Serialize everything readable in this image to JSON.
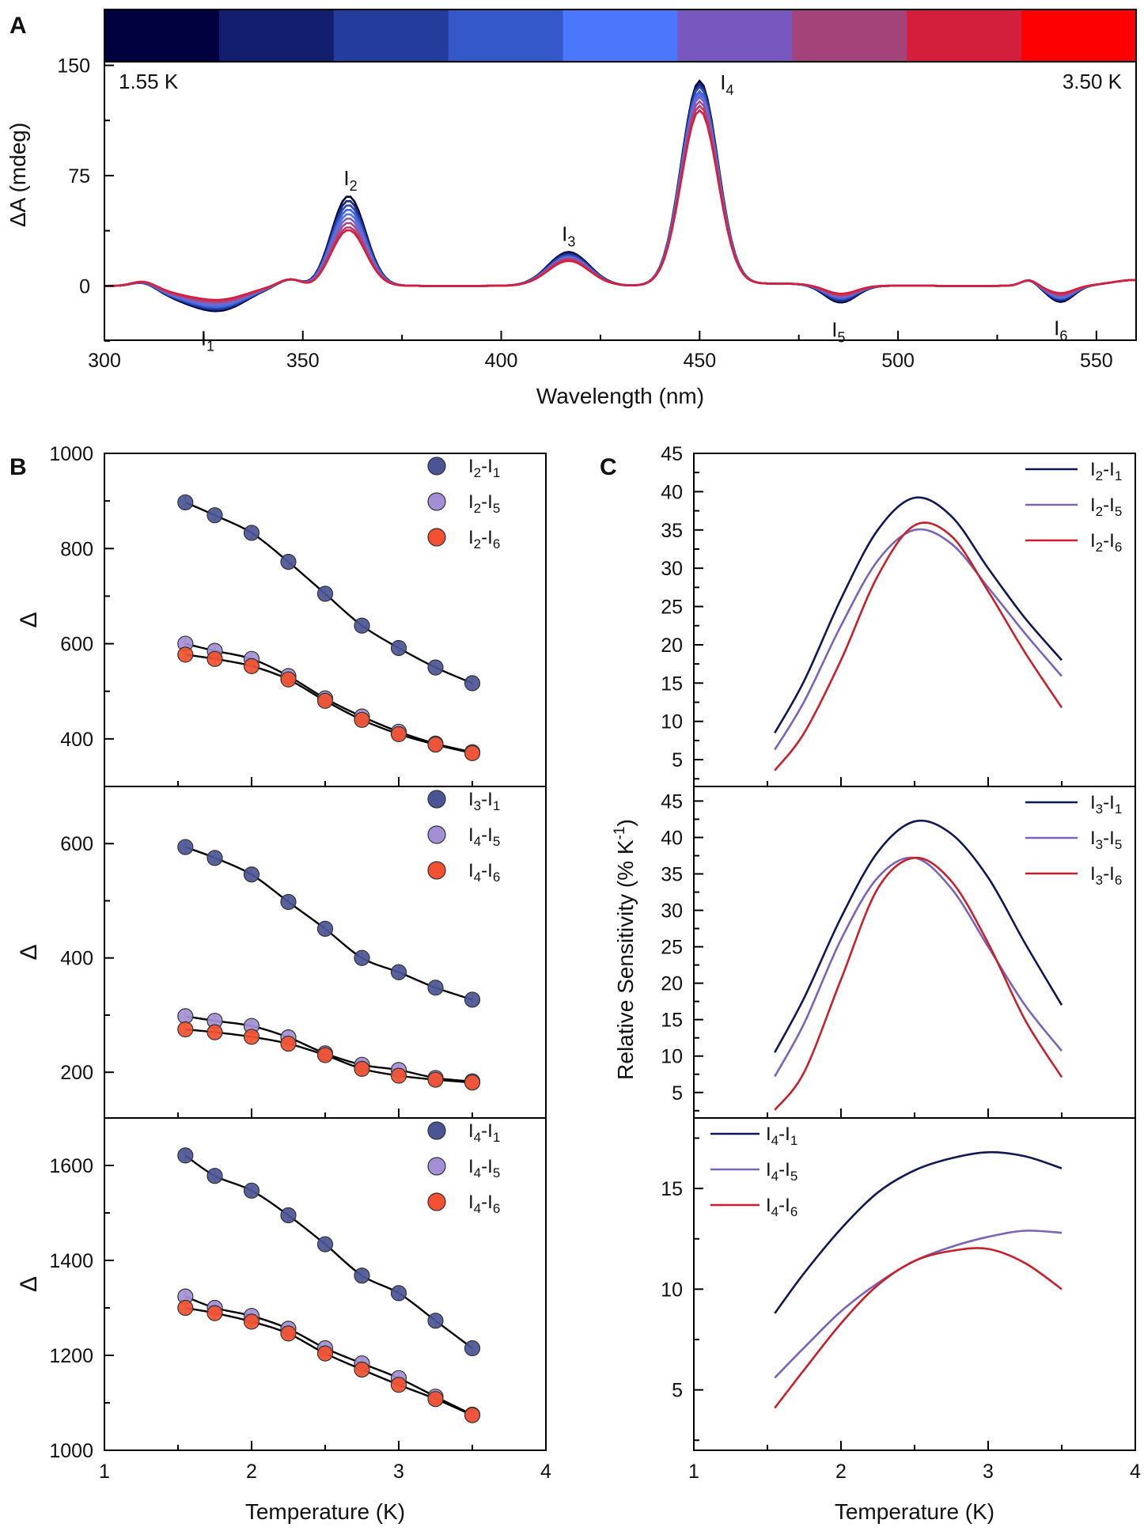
{
  "panels": {
    "a": "A",
    "b": "B",
    "c": "C"
  },
  "chart_data": [
    {
      "id": "A",
      "type": "line",
      "xlabel": "Wavelength (nm)",
      "ylabel": "ΔA (mdeg)",
      "xlim": [
        300,
        560
      ],
      "ylim": [
        -37,
        188
      ],
      "xticks": [
        300,
        350,
        400,
        450,
        500,
        550
      ],
      "yticks": [
        0,
        75,
        150
      ],
      "colorbar": {
        "colors": [
          "#02013f",
          "#131d6e",
          "#243c9b",
          "#3558c8",
          "#4a77fb",
          "#7758bf",
          "#a4437a",
          "#d31f3c",
          "#fd0101"
        ],
        "label_low": "1.55 K",
        "label_high": "3.50 K"
      },
      "peak_labels": [
        {
          "id": "I1",
          "base": "I",
          "sub": "1",
          "wavelength": 326,
          "value": -18
        },
        {
          "id": "I2",
          "base": "I",
          "sub": "2",
          "wavelength": 362,
          "value": 61
        },
        {
          "id": "I3",
          "base": "I",
          "sub": "3",
          "wavelength": 417,
          "value": 23
        },
        {
          "id": "I4",
          "base": "I",
          "sub": "4",
          "wavelength": 450,
          "value": 139
        },
        {
          "id": "I5",
          "base": "I",
          "sub": "5",
          "wavelength": 485,
          "value": -12
        },
        {
          "id": "I6",
          "base": "I",
          "sub": "6",
          "wavelength": 541,
          "value": -11
        }
      ],
      "series_colors": [
        "#02013f",
        "#1a2b86",
        "#2c49b0",
        "#3d66da",
        "#5a6fe0",
        "#7b64c4",
        "#9a4f98",
        "#bb3a6b",
        "#d3203f"
      ],
      "series_temperatures_K": [
        1.55,
        1.75,
        2.0,
        2.25,
        2.5,
        2.75,
        3.0,
        3.25,
        3.5
      ],
      "peak_heights": {
        "I1": [
          -18,
          -17,
          -16,
          -15,
          -14,
          -13,
          -12,
          -11,
          -10
        ],
        "I2": [
          61,
          58,
          55,
          52,
          49,
          46,
          43,
          40,
          38
        ],
        "I3": [
          23,
          22,
          21,
          20,
          19.5,
          19,
          18.5,
          18,
          17
        ],
        "I4": [
          139,
          137,
          135,
          132,
          130,
          128,
          125,
          122,
          119
        ],
        "I5": [
          -12,
          -11,
          -10,
          -9,
          -8.5,
          -8,
          -7.5,
          -7,
          -6
        ],
        "I6": [
          -11,
          -10,
          -9,
          -8.5,
          -8,
          -7,
          -6.5,
          -6,
          -5
        ]
      }
    },
    {
      "id": "B",
      "type": "scatter",
      "xlabel": "Temperature (K)",
      "ylabel": "Δ",
      "xlim": [
        1,
        4
      ],
      "xticks": [
        1,
        2,
        3,
        4
      ],
      "x": [
        1.55,
        1.75,
        2.0,
        2.25,
        2.5,
        2.75,
        3.0,
        3.25,
        3.5
      ],
      "subplots": [
        {
          "ylim": [
            300,
            1000
          ],
          "yticks": [
            400,
            600,
            800,
            1000
          ],
          "series": [
            {
              "base": "I",
              "sub1": "2",
              "sub2": "1",
              "color": "#4a5596",
              "values": [
                897,
                870,
                833,
                772,
                705,
                638,
                591,
                550,
                517
              ]
            },
            {
              "base": "I",
              "sub1": "2",
              "sub2": "5",
              "color": "#a48fd6",
              "values": [
                600,
                585,
                568,
                532,
                485,
                447,
                415,
                390,
                372
              ]
            },
            {
              "base": "I",
              "sub1": "2",
              "sub2": "6",
              "color": "#f25030",
              "values": [
                577,
                568,
                553,
                525,
                480,
                440,
                410,
                388,
                370
              ]
            }
          ]
        },
        {
          "ylim": [
            120,
            700
          ],
          "yticks": [
            200,
            400,
            600
          ],
          "series": [
            {
              "base": "I",
              "sub1": "3",
              "sub2": "1",
              "color": "#4a5596",
              "values": [
                594,
                575,
                546,
                498,
                451,
                400,
                375,
                348,
                327
              ]
            },
            {
              "base": "I",
              "sub1": "4",
              "sub2": "5",
              "color": "#a48fd6",
              "values": [
                298,
                290,
                281,
                261,
                233,
                213,
                204,
                190,
                184
              ]
            },
            {
              "base": "I",
              "sub1": "4",
              "sub2": "6",
              "color": "#f25030",
              "values": [
                275,
                270,
                262,
                250,
                230,
                206,
                194,
                187,
                182
              ]
            }
          ]
        },
        {
          "ylim": [
            1000,
            1700
          ],
          "yticks": [
            1000,
            1200,
            1400,
            1600
          ],
          "series": [
            {
              "base": "I",
              "sub1": "4",
              "sub2": "1",
              "color": "#4a5596",
              "values": [
                1621,
                1578,
                1547,
                1495,
                1434,
                1368,
                1331,
                1273,
                1215
              ]
            },
            {
              "base": "I",
              "sub1": "4",
              "sub2": "5",
              "color": "#a48fd6",
              "values": [
                1324,
                1300,
                1283,
                1256,
                1215,
                1183,
                1152,
                1113,
                1075
              ]
            },
            {
              "base": "I",
              "sub1": "4",
              "sub2": "6",
              "color": "#f25030",
              "values": [
                1300,
                1289,
                1271,
                1246,
                1204,
                1170,
                1138,
                1108,
                1074
              ]
            }
          ]
        }
      ]
    },
    {
      "id": "C",
      "type": "line",
      "xlabel": "Temperature (K)",
      "ylabel": "Relative Sensitivity (% K",
      "ylabel_sup": "-1",
      "ylabel_end": ")",
      "xlim": [
        1,
        4
      ],
      "xticks": [
        1,
        2,
        3,
        4
      ],
      "x": [
        1.55,
        1.75,
        2.0,
        2.25,
        2.5,
        2.75,
        3.0,
        3.25,
        3.5
      ],
      "subplots": [
        {
          "ylim": [
            1.5,
            45
          ],
          "yticks": [
            5,
            10,
            15,
            20,
            25,
            30,
            35,
            40,
            45
          ],
          "series": [
            {
              "base": "I",
              "sub1": "2",
              "sub2": "1",
              "color": "#101853",
              "values": [
                8.5,
                15.3,
                26.0,
                35.0,
                39.2,
                36.8,
                30.0,
                23.5,
                18.0
              ]
            },
            {
              "base": "I",
              "sub1": "2",
              "sub2": "5",
              "color": "#7b64b5",
              "values": [
                6.3,
                12.6,
                22.5,
                31.0,
                35.0,
                33.2,
                27.5,
                21.5,
                15.9
              ]
            },
            {
              "base": "I",
              "sub1": "2",
              "sub2": "6",
              "color": "#c8202b",
              "values": [
                3.6,
                8.5,
                18.0,
                29.0,
                35.6,
                34.2,
                27.0,
                19.0,
                11.8
              ]
            }
          ]
        },
        {
          "ylim": [
            1.5,
            47
          ],
          "yticks": [
            5,
            10,
            15,
            20,
            25,
            30,
            35,
            40,
            45
          ],
          "series": [
            {
              "base": "I",
              "sub1": "3",
              "sub2": "1",
              "color": "#101853",
              "values": [
                10.5,
                18.0,
                29.0,
                38.0,
                42.2,
                40.5,
                34.5,
                25.5,
                17.0
              ]
            },
            {
              "base": "I",
              "sub1": "3",
              "sub2": "5",
              "color": "#7b64b5",
              "values": [
                7.2,
                14.5,
                26.0,
                34.5,
                37.2,
                33.0,
                25.0,
                17.0,
                10.7
              ]
            },
            {
              "base": "I",
              "sub1": "3",
              "sub2": "6",
              "color": "#c8202b",
              "values": [
                2.6,
                7.8,
                20.5,
                33.0,
                37.2,
                34.0,
                25.5,
                15.0,
                7.1
              ]
            }
          ]
        },
        {
          "ylim": [
            2,
            18.5
          ],
          "yticks": [
            5,
            10,
            15
          ],
          "series": [
            {
              "base": "I",
              "sub1": "4",
              "sub2": "1",
              "color": "#101853",
              "values": [
                8.8,
                10.8,
                13.0,
                14.8,
                15.9,
                16.5,
                16.8,
                16.6,
                16.0
              ]
            },
            {
              "base": "I",
              "sub1": "4",
              "sub2": "5",
              "color": "#7b64b5",
              "values": [
                5.6,
                7.1,
                8.9,
                10.3,
                11.4,
                12.1,
                12.6,
                12.9,
                12.8
              ]
            },
            {
              "base": "I",
              "sub1": "4",
              "sub2": "6",
              "color": "#c8202b",
              "values": [
                4.1,
                6.0,
                8.3,
                10.2,
                11.4,
                11.9,
                12.0,
                11.3,
                10.0
              ]
            }
          ]
        }
      ]
    }
  ]
}
